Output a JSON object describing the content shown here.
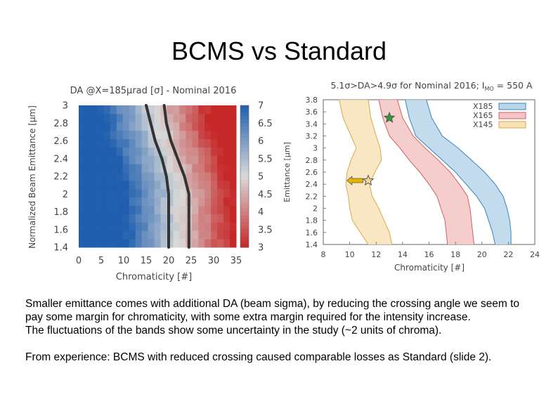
{
  "slide": {
    "title": "BCMS vs Standard",
    "body": [
      "Smaller emittance comes with additional DA (beam sigma), by reducing the crossing angle we seem to pay some margin for chromaticity, with some extra margin required for the intensity increase.",
      "The fluctuations of the bands show some uncertainty in the study (~2 units of chroma).",
      "",
      "From experience: BCMS with reduced crossing caused comparable losses as Standard (slide 2)."
    ]
  },
  "chart_data": [
    {
      "type": "heatmap",
      "title": "DA @X=185μrad [σ] - Nominal 2016",
      "xlabel": "Chromaticity [#]",
      "ylabel": "Normalized Beam Emittance [μm]",
      "xlim": [
        0,
        35
      ],
      "ylim": [
        1.4,
        3
      ],
      "x_ticks": [
        "0",
        "5",
        "10",
        "15",
        "20",
        "25",
        "30",
        "35"
      ],
      "y_ticks": [
        "1.4",
        "1.6",
        "1.8",
        "2",
        "2.2",
        "2.4",
        "2.6",
        "2.8",
        "3"
      ],
      "colorbar": {
        "range": [
          3,
          7
        ],
        "ticks": [
          "3",
          "3.5",
          "4",
          "4.5",
          "5",
          "5.5",
          "6",
          "6.5",
          "7"
        ],
        "low_color": "#c62828",
        "mid_color": "#d9d9d9",
        "high_color": "#1f5fae"
      },
      "contours": [
        {
          "points": [
            [
              15,
              3.0
            ],
            [
              16,
              2.8
            ],
            [
              17,
              2.6
            ],
            [
              18.5,
              2.4
            ],
            [
              19.5,
              2.2
            ],
            [
              20,
              2.0
            ],
            [
              20,
              1.8
            ],
            [
              20,
              1.6
            ],
            [
              20,
              1.4
            ]
          ]
        },
        {
          "points": [
            [
              19,
              3.0
            ],
            [
              19.5,
              2.8
            ],
            [
              20.5,
              2.6
            ],
            [
              22,
              2.4
            ],
            [
              23.5,
              2.2
            ],
            [
              24.5,
              2.0
            ],
            [
              24.5,
              1.8
            ],
            [
              24.5,
              1.6
            ],
            [
              24.5,
              1.4
            ]
          ]
        }
      ]
    },
    {
      "type": "area",
      "title": "5.1σ>DA>4.9σ for Nominal 2016; I",
      "title_sub": "MO",
      "title_end": " = 550 A",
      "xlabel": "Chromaticity [#]",
      "ylabel": "Emittance [μm]",
      "xlim": [
        8,
        24
      ],
      "ylim": [
        1.4,
        3.8
      ],
      "x_ticks": [
        "8",
        "10",
        "12",
        "14",
        "16",
        "18",
        "20",
        "22",
        "24"
      ],
      "y_ticks": [
        "1.4",
        "1.6",
        "1.8",
        "2",
        "2.2",
        "2.4",
        "2.6",
        "2.8",
        "3",
        "3.2",
        "3.4",
        "3.6",
        "3.8"
      ],
      "legend_position": "top-right",
      "series": [
        {
          "name": "X185",
          "color": "#b9d6ea",
          "edge": "#3a84bd",
          "left": [
            [
              14.2,
              3.8
            ],
            [
              14.5,
              3.5
            ],
            [
              15,
              3.2
            ],
            [
              16,
              3.0
            ],
            [
              17,
              2.8
            ],
            [
              18,
              2.6
            ],
            [
              18.8,
              2.4
            ],
            [
              19.6,
              2.2
            ],
            [
              20.2,
              2.0
            ],
            [
              20.5,
              1.8
            ],
            [
              20.8,
              1.6
            ],
            [
              21,
              1.4
            ]
          ],
          "right": [
            [
              15.8,
              3.8
            ],
            [
              16.2,
              3.5
            ],
            [
              17,
              3.2
            ],
            [
              18.2,
              3.0
            ],
            [
              19.2,
              2.8
            ],
            [
              20.2,
              2.6
            ],
            [
              21,
              2.4
            ],
            [
              21.6,
              2.2
            ],
            [
              21.9,
              2.0
            ],
            [
              22.1,
              1.8
            ],
            [
              22.2,
              1.6
            ],
            [
              22.2,
              1.4
            ]
          ]
        },
        {
          "name": "X165",
          "color": "#f5c4c4",
          "edge": "#d06060",
          "left": [
            [
              12.2,
              3.8
            ],
            [
              12.5,
              3.5
            ],
            [
              13,
              3.2
            ],
            [
              13.8,
              3.0
            ],
            [
              14.5,
              2.8
            ],
            [
              15.3,
              2.6
            ],
            [
              16,
              2.4
            ],
            [
              16.6,
              2.2
            ],
            [
              16.9,
              2.0
            ],
            [
              17.2,
              1.8
            ],
            [
              17.3,
              1.6
            ],
            [
              17.4,
              1.4
            ]
          ],
          "right": [
            [
              13.6,
              3.8
            ],
            [
              14,
              3.5
            ],
            [
              14.8,
              3.2
            ],
            [
              15.7,
              3.0
            ],
            [
              16.7,
              2.8
            ],
            [
              17.6,
              2.6
            ],
            [
              18.3,
              2.4
            ],
            [
              18.9,
              2.2
            ],
            [
              19.1,
              2.0
            ],
            [
              19.2,
              1.8
            ],
            [
              19.3,
              1.6
            ],
            [
              19.4,
              1.4
            ]
          ]
        },
        {
          "name": "X145",
          "color": "#f8e3b9",
          "edge": "#d9a94a",
          "left": [
            [
              9.2,
              3.8
            ],
            [
              9.5,
              3.5
            ],
            [
              10.1,
              3.2
            ],
            [
              10.5,
              3.0
            ],
            [
              10.1,
              2.8
            ],
            [
              9.8,
              2.6
            ],
            [
              9.7,
              2.4
            ],
            [
              9.9,
              2.2
            ],
            [
              10,
              2.0
            ],
            [
              10.2,
              1.8
            ],
            [
              10.8,
              1.6
            ],
            [
              11.4,
              1.4
            ]
          ],
          "right": [
            [
              11.4,
              3.8
            ],
            [
              11.6,
              3.5
            ],
            [
              12,
              3.2
            ],
            [
              12.3,
              3.0
            ],
            [
              12.4,
              2.8
            ],
            [
              11.9,
              2.6
            ],
            [
              11.5,
              2.4
            ],
            [
              11.7,
              2.2
            ],
            [
              12.2,
              2.0
            ],
            [
              12.6,
              1.8
            ],
            [
              13,
              1.6
            ],
            [
              13.2,
              1.4
            ]
          ]
        }
      ],
      "markers": [
        {
          "kind": "star",
          "x": 13,
          "y": 3.5,
          "color": "#2e9a3e"
        },
        {
          "kind": "star",
          "x": 11.4,
          "y": 2.46,
          "color": "#f3d89a"
        },
        {
          "kind": "arrow",
          "x_from": 11.0,
          "x_to": 9.8,
          "y": 2.46,
          "color": "#e6b400"
        }
      ]
    }
  ]
}
